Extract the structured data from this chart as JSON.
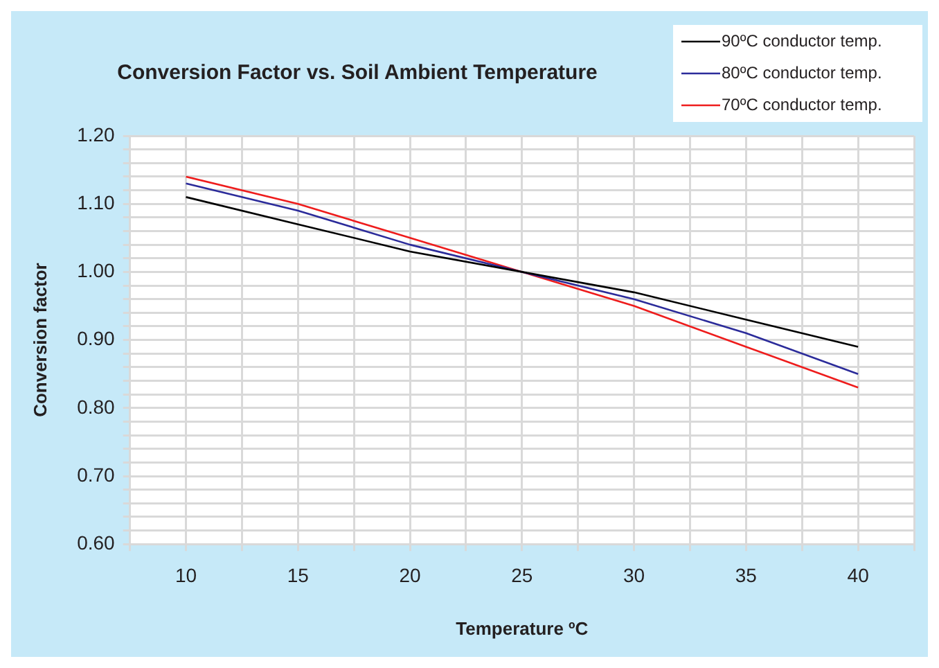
{
  "chart_data": {
    "type": "line",
    "title": "Conversion Factor vs. Soil Ambient Temperature",
    "xlabel": "Temperature ºC",
    "ylabel": "Conversion factor",
    "x": [
      10,
      15,
      20,
      25,
      30,
      35,
      40
    ],
    "xlim": [
      7.5,
      42.5
    ],
    "xticks": [
      {
        "value": 7.5,
        "label": null
      },
      10,
      {
        "value": 12.5,
        "label": null
      },
      15,
      {
        "value": 17.5,
        "label": null
      },
      20,
      {
        "value": 22.5,
        "label": null
      },
      25,
      {
        "value": 27.5,
        "label": null
      },
      30,
      {
        "value": 32.5,
        "label": null
      },
      35,
      {
        "value": 37.5,
        "label": null
      },
      40,
      {
        "value": 42.5,
        "label": null
      }
    ],
    "ylim": [
      0.6,
      1.2
    ],
    "yticks": [
      {
        "value": 0.6,
        "label": "0.60"
      },
      {
        "value": 0.62,
        "label": null
      },
      {
        "value": 0.64,
        "label": null
      },
      {
        "value": 0.66,
        "label": null
      },
      {
        "value": 0.68,
        "label": null
      },
      {
        "value": 0.7,
        "label": "0.70"
      },
      {
        "value": 0.72,
        "label": null
      },
      {
        "value": 0.74,
        "label": null
      },
      {
        "value": 0.76,
        "label": null
      },
      {
        "value": 0.78,
        "label": null
      },
      {
        "value": 0.8,
        "label": "0.80"
      },
      {
        "value": 0.82,
        "label": null
      },
      {
        "value": 0.84,
        "label": null
      },
      {
        "value": 0.86,
        "label": null
      },
      {
        "value": 0.88,
        "label": null
      },
      {
        "value": 0.9,
        "label": "0.90"
      },
      {
        "value": 0.92,
        "label": null
      },
      {
        "value": 0.94,
        "label": null
      },
      {
        "value": 0.96,
        "label": null
      },
      {
        "value": 0.98,
        "label": null
      },
      {
        "value": 1.0,
        "label": "1.00"
      },
      {
        "value": 1.02,
        "label": null
      },
      {
        "value": 1.04,
        "label": null
      },
      {
        "value": 1.06,
        "label": null
      },
      {
        "value": 1.08,
        "label": null
      },
      {
        "value": 1.1,
        "label": "1.10"
      },
      {
        "value": 1.12,
        "label": null
      },
      {
        "value": 1.14,
        "label": null
      },
      {
        "value": 1.16,
        "label": null
      },
      {
        "value": 1.18,
        "label": null
      },
      {
        "value": 1.2,
        "label": "1.20"
      }
    ],
    "grid": true,
    "legend": "top right",
    "marker": "none",
    "line_style": "solid",
    "series": [
      {
        "name": "90ºC conductor temp.",
        "color": "#000000",
        "values": [
          1.11,
          1.07,
          1.03,
          1.0,
          0.97,
          0.93,
          0.89
        ]
      },
      {
        "name": "80ºC conductor temp.",
        "color": "#2b2b9a",
        "values": [
          1.13,
          1.09,
          1.04,
          1.0,
          0.96,
          0.91,
          0.85
        ]
      },
      {
        "name": "70ºC conductor temp.",
        "color": "#ee1c1c",
        "values": [
          1.14,
          1.1,
          1.05,
          1.0,
          0.95,
          0.89,
          0.83
        ]
      }
    ]
  }
}
